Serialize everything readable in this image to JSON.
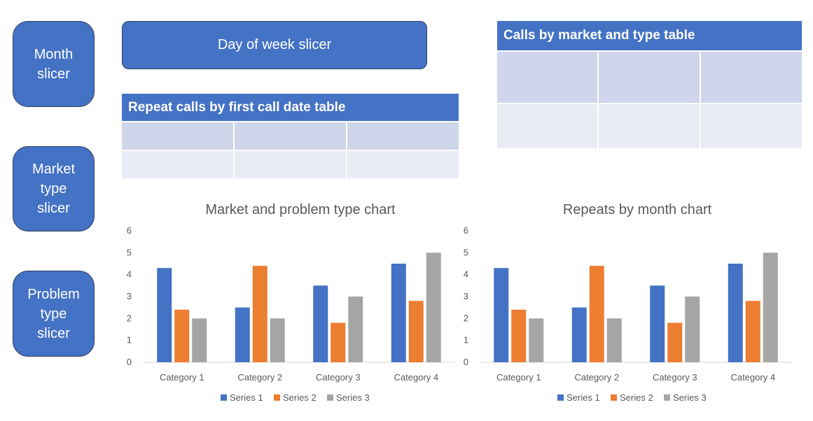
{
  "slicers": {
    "month": [
      "Month",
      "slicer"
    ],
    "market_type": [
      "Market",
      "type",
      "slicer"
    ],
    "problem_type": [
      "Problem",
      "type",
      "slicer"
    ],
    "day_of_week": "Day of week slicer"
  },
  "tables": {
    "repeat_calls": {
      "title": "Repeat calls by first call date table"
    },
    "calls_by_market": {
      "title": "Calls by market and type table"
    }
  },
  "colors": {
    "accent": "#4472c4",
    "series1": "#4472c4",
    "series2": "#ed7d31",
    "series3": "#a5a5a5",
    "table_dark": "#cfd5ea",
    "table_light": "#e9ebf5"
  },
  "chart_data": [
    {
      "type": "bar",
      "title": "Market and problem type chart",
      "categories": [
        "Category 1",
        "Category 2",
        "Category 3",
        "Category 4"
      ],
      "series": [
        {
          "name": "Series 1",
          "values": [
            4.3,
            2.5,
            3.5,
            4.5
          ]
        },
        {
          "name": "Series 2",
          "values": [
            2.4,
            4.4,
            1.8,
            2.8
          ]
        },
        {
          "name": "Series 3",
          "values": [
            2,
            2,
            3,
            5
          ]
        }
      ],
      "ylim": [
        0,
        6
      ],
      "yticks": [
        "0",
        "1",
        "2",
        "3",
        "4",
        "5",
        "6"
      ],
      "grid": false,
      "legend": "bottom"
    },
    {
      "type": "bar",
      "title": "Repeats by month chart",
      "categories": [
        "Category 1",
        "Category 2",
        "Category 3",
        "Category 4"
      ],
      "series": [
        {
          "name": "Series 1",
          "values": [
            4.3,
            2.5,
            3.5,
            4.5
          ]
        },
        {
          "name": "Series 2",
          "values": [
            2.4,
            4.4,
            1.8,
            2.8
          ]
        },
        {
          "name": "Series 3",
          "values": [
            2,
            2,
            3,
            5
          ]
        }
      ],
      "ylim": [
        0,
        6
      ],
      "yticks": [
        "0",
        "1",
        "2",
        "3",
        "4",
        "5",
        "6"
      ],
      "grid": false,
      "legend": "bottom"
    }
  ]
}
